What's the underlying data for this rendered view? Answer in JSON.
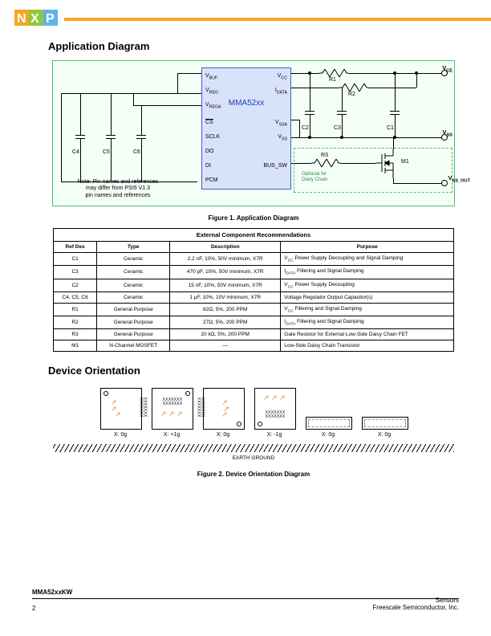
{
  "logo": {
    "text": "NXP",
    "colors": {
      "n": "#f5a623",
      "x": "#8fc73e",
      "p": "#5fb4e6",
      "outline": "#2a2a2a"
    }
  },
  "topbar_color": "#f5a623",
  "section1_title": "Application Diagram",
  "section2_title": "Device Orientation",
  "fig1_caption": "Figure 1. Application Diagram",
  "fig2_caption": "Figure 2. Device Orientation Diagram",
  "chip": {
    "name": "MMA52xx",
    "bg": "#d9e2fb",
    "border": "#4060c8",
    "left_pins": [
      "V_BUF",
      "V_REG",
      "V_REGA",
      "CS",
      "SCLK",
      "DO",
      "DI",
      "PCM"
    ],
    "right_pins": [
      "V_CC",
      "I_DATA",
      "",
      "V_SSA",
      "V_SS",
      "",
      "BUS_SW",
      ""
    ]
  },
  "diagram": {
    "caps_left": [
      "C4",
      "C5",
      "C6"
    ],
    "caps_right": [
      "C2",
      "C3",
      "C1"
    ],
    "resistors": [
      "R1",
      "R2",
      "R3"
    ],
    "mosfet": "M1",
    "external_labels": [
      "V_CE",
      "V_SS",
      "V_SS_OUT"
    ],
    "optional_text_1": "Optional for",
    "optional_text_2": "Daisy Chain",
    "note_l1": "Note: Pin names and references",
    "note_l2": "may differ from PSI5 V1.3",
    "note_l3": "pin names and references"
  },
  "table": {
    "title": "External Component Recommendations",
    "headers": [
      "Ref Des",
      "Type",
      "Description",
      "Purpose"
    ],
    "rows": [
      [
        "C1",
        "Ceramic",
        "2.2 nF, 10%, 50V minimum, X7R",
        "V_CC Power Supply Decoupling and Signal Damping"
      ],
      [
        "C3",
        "Ceramic",
        "470 pF, 10%, 50V minimum, X7R",
        "I_DATA Filtering and Signal Damping"
      ],
      [
        "C2",
        "Ceramic",
        "15 nF, 10%, 50V minimum, X7R",
        "V_CC Power Supply Decoupling"
      ],
      [
        "C4, C5, C6",
        "Ceramic",
        "1 µF, 10%, 10V minimum, X7R",
        "Voltage Regulator Output Capacitor(s)"
      ],
      [
        "R1",
        "General Purpose",
        "82Ω, 5%, 200 PPM",
        "V_CC Filtering and Signal Damping"
      ],
      [
        "R2",
        "General Purpose",
        "27Ω, 5%, 200 PPM",
        "I_DATA Filtering and Signal Damping"
      ],
      [
        "R3",
        "General Purpose",
        "20 kΩ, 5%, 200 PPM",
        "Gate Resistor for External Low-Side Daisy Chain FET"
      ],
      [
        "M1",
        "N-Channel MOSFET",
        "—",
        "Low-Side Daisy Chain Transistor"
      ]
    ]
  },
  "orientation": {
    "labels": [
      "X: 0g",
      "X: +1g",
      "X: 0g",
      "X: -1g",
      "X: 0g",
      "X: 0g"
    ],
    "earth": "EARTH GROUND",
    "pkg_text": "XXXXXXX\nXXXXXXX"
  },
  "footer": {
    "left": "MMA52xxKW",
    "page": "2",
    "right_l1": "Sensors",
    "right_l2": "Freescale Semiconductor, Inc."
  },
  "colors": {
    "diagram_border": "#4bbf6e",
    "diagram_bg": "#f4fff7",
    "arrow": "#e98b2a"
  }
}
